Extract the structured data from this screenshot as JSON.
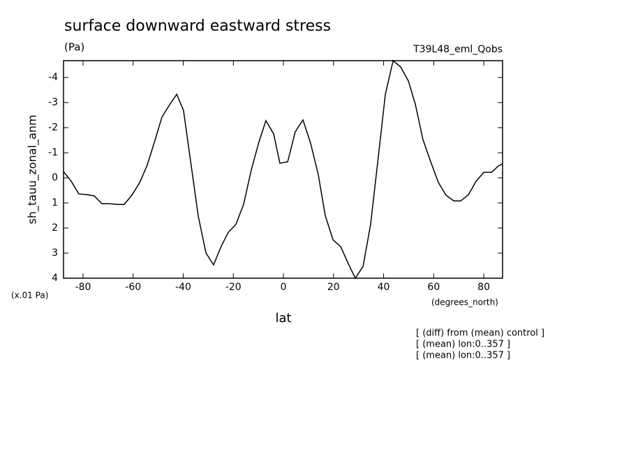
{
  "chart_data": {
    "type": "line",
    "title": "surface downward eastward stress",
    "subtitle": "(Pa)",
    "run_label": "T39L48_eml_Qobs",
    "y_label": "sh_tauu_zonal_anm",
    "y_scale_label": "(x.01 Pa)",
    "x_units_label": "(degrees_north)",
    "x_label": "lat",
    "notes": [
      "[ (diff) from (mean) control ]",
      "[ (mean) lon:0..357 ]",
      "[ (mean) lon:0..357 ]"
    ],
    "color": "#000000",
    "xlim": [
      -87.8,
      87.5
    ],
    "ylim": [
      4,
      -4.67
    ],
    "xticks": [
      -80,
      -60,
      -40,
      -20,
      0,
      20,
      40,
      60,
      80
    ],
    "yticks": [
      -4,
      -3,
      -2,
      -1,
      0,
      1,
      2,
      3,
      4
    ],
    "x": [
      -87.8,
      -84.7,
      -81.7,
      -78.6,
      -75.5,
      -72.5,
      -69.4,
      -66.3,
      -63.6,
      -60.5,
      -57.4,
      -54.4,
      -51.6,
      -48.5,
      -45.4,
      -42.6,
      -39.9,
      -37.1,
      -34.0,
      -30.9,
      -27.9,
      -24.8,
      -22.0,
      -19.0,
      -15.9,
      -12.8,
      -9.8,
      -7.0,
      -3.9,
      -1.4,
      1.7,
      4.7,
      7.8,
      10.9,
      13.9,
      16.7,
      19.8,
      22.9,
      25.9,
      28.7,
      31.8,
      34.8,
      37.6,
      40.7,
      43.8,
      46.8,
      49.9,
      52.7,
      55.7,
      58.8,
      61.9,
      64.9,
      68.0,
      70.8,
      73.9,
      76.9,
      80.0,
      83.1,
      85.8,
      87.5
    ],
    "values": [
      -0.25,
      0.14,
      0.64,
      0.67,
      0.72,
      1.03,
      1.03,
      1.06,
      1.06,
      0.69,
      0.19,
      -0.5,
      -1.39,
      -2.42,
      -2.92,
      -3.33,
      -2.69,
      -0.69,
      1.53,
      3.0,
      3.47,
      2.72,
      2.17,
      1.86,
      1.06,
      -0.33,
      -1.42,
      -2.28,
      -1.75,
      -0.58,
      -0.64,
      -1.83,
      -2.31,
      -1.36,
      -0.14,
      1.5,
      2.47,
      2.75,
      3.42,
      4.0,
      3.53,
      1.86,
      -0.58,
      -3.33,
      -4.67,
      -4.42,
      -3.86,
      -2.92,
      -1.53,
      -0.64,
      0.19,
      0.69,
      0.92,
      0.92,
      0.67,
      0.14,
      -0.22,
      -0.22,
      -0.47,
      -0.56
    ]
  }
}
